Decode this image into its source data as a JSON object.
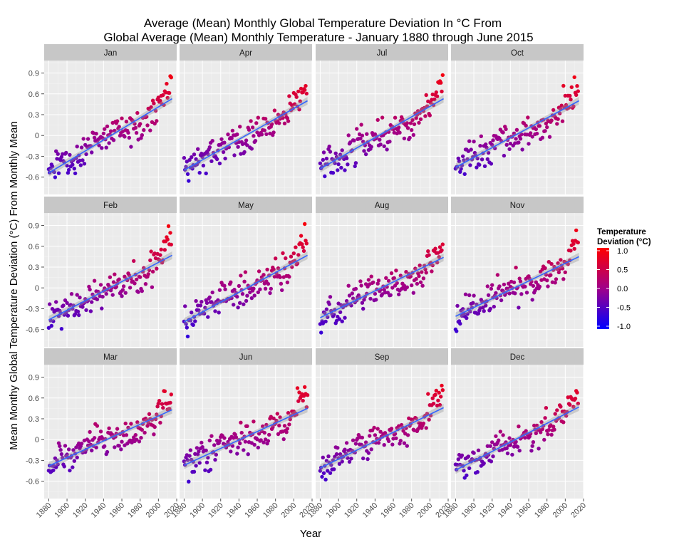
{
  "title": {
    "line1": "Average (Mean) Monthly Global Temperature Deviation In °C From",
    "line2": "Global Average (Mean) Monthly Temperature - January 1880 through June 2015"
  },
  "colors": {
    "panel_bg": "#ebebeb",
    "strip_bg": "#c7c7c7",
    "grid": "#ffffff",
    "trend_line": "#3366ff",
    "confidence_band": "#999999",
    "low": "#0000ff",
    "mid": "#a0008a",
    "high": "#ff0000"
  },
  "chart_data": {
    "type": "scatter",
    "facet_layout": "3 rows x 4 columns",
    "panels": [
      {
        "month": "Jan",
        "trend": {
          "start": -0.54,
          "end": 0.53
        }
      },
      {
        "month": "Apr",
        "trend": {
          "start": -0.5,
          "end": 0.5
        }
      },
      {
        "month": "Jul",
        "trend": {
          "start": -0.48,
          "end": 0.53
        }
      },
      {
        "month": "Oct",
        "trend": {
          "start": -0.46,
          "end": 0.5
        }
      },
      {
        "month": "Feb",
        "trend": {
          "start": -0.46,
          "end": 0.47
        }
      },
      {
        "month": "May",
        "trend": {
          "start": -0.49,
          "end": 0.47
        }
      },
      {
        "month": "Aug",
        "trend": {
          "start": -0.43,
          "end": 0.44
        }
      },
      {
        "month": "Nov",
        "trend": {
          "start": -0.41,
          "end": 0.45
        }
      },
      {
        "month": "Mar",
        "trend": {
          "start": -0.38,
          "end": 0.43
        }
      },
      {
        "month": "Jun",
        "trend": {
          "start": -0.37,
          "end": 0.45
        }
      },
      {
        "month": "Sep",
        "trend": {
          "start": -0.41,
          "end": 0.46
        }
      },
      {
        "month": "Dec",
        "trend": {
          "start": -0.44,
          "end": 0.47
        }
      }
    ],
    "x_range": [
      1880,
      2015
    ],
    "xlim": [
      1875,
      2020
    ],
    "ylim": [
      -0.85,
      1.08
    ],
    "x_ticks": [
      "1880",
      "1900",
      "1920",
      "1940",
      "1960",
      "1980",
      "2000",
      "2020"
    ],
    "y_ticks": [
      "0.9",
      "0.6",
      "0.3",
      "0",
      "-0.3",
      "-0.6"
    ],
    "xlabel": "Year",
    "ylabel": "Mean Monthy Global Temperature Deviation (°C) From Monthly Mean",
    "legend": {
      "title_line1": "Temperature",
      "title_line2": "Deviation (°C)",
      "labels": [
        "1.0",
        "0.5",
        "0.0",
        "-0.5",
        "-1.0"
      ],
      "range": [
        -1.0,
        1.0
      ],
      "placement": "right"
    },
    "grid": true,
    "data_points_per_panel": "one point per year 1880–2015 (June panels through 2015, others through 2014)"
  }
}
